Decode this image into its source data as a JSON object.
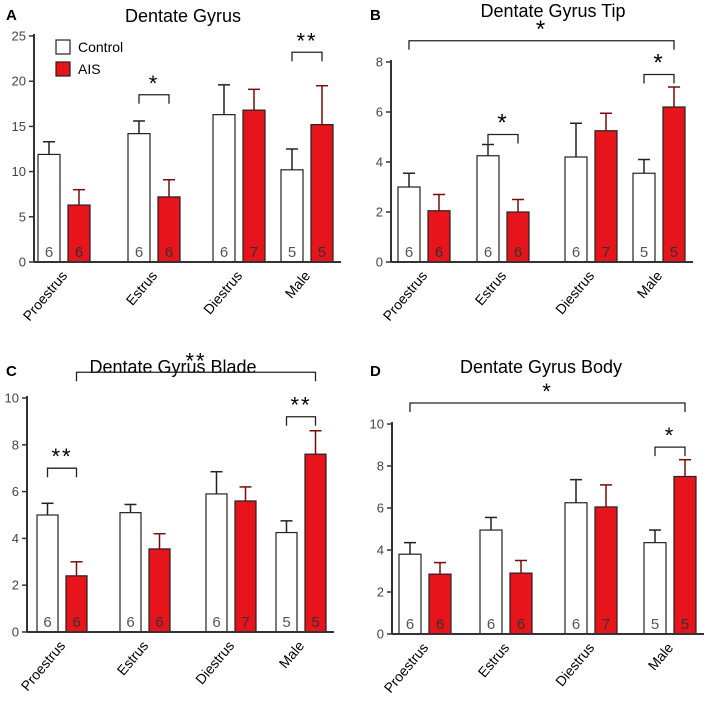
{
  "figure": {
    "legend": {
      "control_label": "Control",
      "ais_label": "AIS"
    },
    "colors": {
      "control": "#ffffff",
      "ais": "#e8141b",
      "axis": "#333333",
      "text": "#000000",
      "count": "#555555"
    }
  },
  "chart_data": [
    {
      "panel": "A",
      "type": "bar",
      "title": "Dentate Gyrus",
      "categories": [
        "Proestrus",
        "Estrus",
        "Diestrus",
        "Male"
      ],
      "ylim": [
        0,
        25
      ],
      "yticks": [
        0,
        5,
        10,
        15,
        20,
        25
      ],
      "series": [
        {
          "name": "Control",
          "values": [
            11.9,
            14.2,
            16.3,
            10.2
          ],
          "errors": [
            1.4,
            1.4,
            3.3,
            2.3
          ],
          "n": [
            "6",
            "6",
            "6",
            "5"
          ]
        },
        {
          "name": "AIS",
          "values": [
            6.3,
            7.2,
            16.8,
            15.2
          ],
          "errors": [
            1.7,
            1.9,
            2.3,
            4.3
          ],
          "n": [
            "6",
            "6",
            "7",
            "5"
          ]
        }
      ],
      "annotations": [
        {
          "label": "*",
          "from": [
            1,
            "Control"
          ],
          "to": [
            1,
            "AIS"
          ],
          "level": 18.5
        },
        {
          "label": "**",
          "from": [
            3,
            "Control"
          ],
          "to": [
            3,
            "AIS"
          ],
          "level": 23.2
        }
      ],
      "legend": true
    },
    {
      "panel": "B",
      "type": "bar",
      "title": "Dentate Gyrus  Tip",
      "categories": [
        "Proestrus",
        "Estrus",
        "Diestrus",
        "Male"
      ],
      "ylim": [
        0,
        8
      ],
      "yticks": [
        0,
        2,
        4,
        6,
        8
      ],
      "series": [
        {
          "name": "Control",
          "values": [
            3.0,
            4.25,
            4.2,
            3.55
          ],
          "errors": [
            0.55,
            0.45,
            1.35,
            0.55
          ],
          "n": [
            "6",
            "6",
            "6",
            "5"
          ]
        },
        {
          "name": "AIS",
          "values": [
            2.05,
            2.0,
            5.25,
            6.2
          ],
          "errors": [
            0.65,
            0.5,
            0.7,
            0.8
          ],
          "n": [
            "6",
            "6",
            "7",
            "5"
          ]
        }
      ],
      "annotations": [
        {
          "label": "*",
          "from": [
            0,
            "Control"
          ],
          "to": [
            3,
            "AIS"
          ],
          "level": 8.85
        },
        {
          "label": "*",
          "from": [
            1,
            "Control"
          ],
          "to": [
            1,
            "AIS"
          ],
          "level": 5.1
        },
        {
          "label": "*",
          "from": [
            3,
            "Control"
          ],
          "to": [
            3,
            "AIS"
          ],
          "level": 7.5
        }
      ],
      "legend": false
    },
    {
      "panel": "C",
      "type": "bar",
      "title": "Dentate Gyrus Blade",
      "categories": [
        "Proestrus",
        "Estrus",
        "Diestrus",
        "Male"
      ],
      "ylim": [
        0,
        10
      ],
      "yticks": [
        0,
        2,
        4,
        6,
        8,
        10
      ],
      "series": [
        {
          "name": "Control",
          "values": [
            5.0,
            5.1,
            5.9,
            4.25
          ],
          "errors": [
            0.5,
            0.35,
            0.95,
            0.5
          ],
          "n": [
            "6",
            "6",
            "6",
            "5"
          ]
        },
        {
          "name": "AIS",
          "values": [
            2.4,
            3.55,
            5.6,
            7.6
          ],
          "errors": [
            0.6,
            0.65,
            0.6,
            1.0
          ],
          "n": [
            "6",
            "6",
            "7",
            "5"
          ]
        }
      ],
      "annotations": [
        {
          "label": "**",
          "from": [
            0,
            "AIS"
          ],
          "to": [
            3,
            "AIS"
          ],
          "level": 11.1
        },
        {
          "label": "**",
          "from": [
            0,
            "Control"
          ],
          "to": [
            0,
            "AIS"
          ],
          "level": 7.0
        },
        {
          "label": "**",
          "from": [
            3,
            "Control"
          ],
          "to": [
            3,
            "AIS"
          ],
          "level": 9.2
        }
      ],
      "legend": false
    },
    {
      "panel": "D",
      "type": "bar",
      "title": "Dentate Gyrus Body",
      "categories": [
        "Proestrus",
        "Estrus",
        "Diestrus",
        "Male"
      ],
      "ylim": [
        0,
        10
      ],
      "yticks": [
        0,
        2,
        4,
        6,
        8,
        10
      ],
      "series": [
        {
          "name": "Control",
          "values": [
            3.8,
            4.95,
            6.25,
            4.35
          ],
          "errors": [
            0.55,
            0.6,
            1.1,
            0.6
          ],
          "n": [
            "6",
            "6",
            "6",
            "5"
          ]
        },
        {
          "name": "AIS",
          "values": [
            2.85,
            2.9,
            6.05,
            7.5
          ],
          "errors": [
            0.55,
            0.6,
            1.05,
            0.8
          ],
          "n": [
            "6",
            "6",
            "7",
            "5"
          ]
        }
      ],
      "annotations": [
        {
          "label": "*",
          "from": [
            0,
            "Control"
          ],
          "to": [
            3,
            "AIS"
          ],
          "level": 11.0
        },
        {
          "label": "*",
          "from": [
            3,
            "Control"
          ],
          "to": [
            3,
            "AIS"
          ],
          "level": 8.9
        }
      ],
      "legend": false
    }
  ]
}
